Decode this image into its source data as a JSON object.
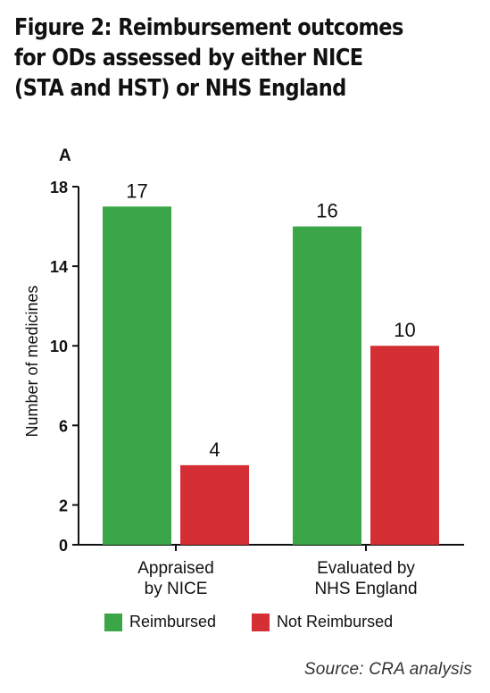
{
  "title_lines": [
    "Figure 2: Reimbursement outcomes",
    "for ODs assessed by either NICE",
    "(STA and HST) or NHS England"
  ],
  "panel_label": "A",
  "source": "Source: CRA analysis",
  "colors": {
    "reimbursed": "#3aa648",
    "not_reimbursed": "#d32f34"
  },
  "chart_data": {
    "type": "bar",
    "title": "Figure 2: Reimbursement outcomes for ODs assessed by either NICE (STA and HST) or NHS England",
    "ylabel": "Number of medicines",
    "xlabel": "",
    "categories": [
      "Appraised by NICE",
      "Evaluated by NHS England"
    ],
    "category_lines": [
      [
        "Appraised",
        "by NICE"
      ],
      [
        "Evaluated by",
        "NHS England"
      ]
    ],
    "yticks": [
      0,
      2,
      6,
      10,
      14,
      18
    ],
    "ylim": [
      0,
      18
    ],
    "grid": false,
    "legend": "bottom",
    "series": [
      {
        "name": "Reimbursed",
        "values": [
          17,
          16
        ],
        "color": "#3aa648"
      },
      {
        "name": "Not Reimbursed",
        "values": [
          4,
          10
        ],
        "color": "#d32f34"
      }
    ]
  }
}
